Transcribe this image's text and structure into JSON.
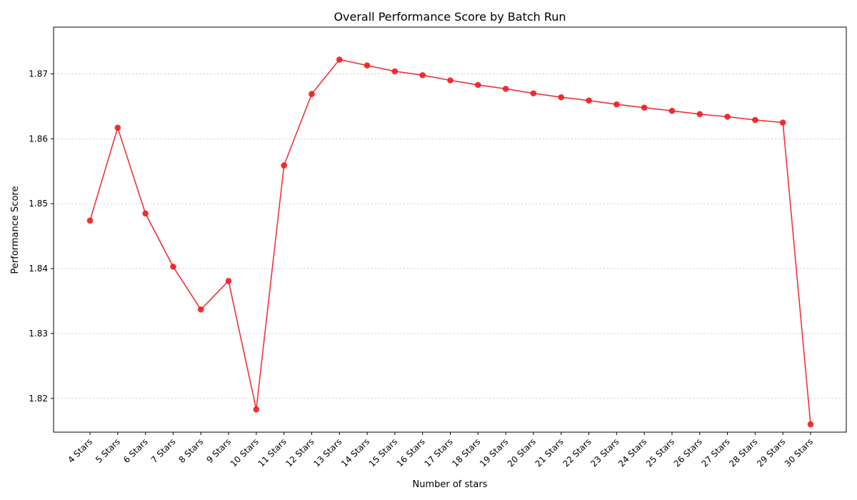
{
  "chart_data": {
    "type": "line",
    "title": "Overall Performance Score by Batch Run",
    "xlabel": "Number of stars",
    "ylabel": "Performance Score",
    "categories": [
      "4 Stars",
      "5 Stars",
      "6 Stars",
      "7 Stars",
      "8 Stars",
      "9 Stars",
      "10 Stars",
      "11 Stars",
      "12 Stars",
      "13 Stars",
      "14 Stars",
      "15 Stars",
      "16 Stars",
      "17 Stars",
      "18 Stars",
      "19 Stars",
      "20 Stars",
      "21 Stars",
      "22 Stars",
      "23 Stars",
      "24 Stars",
      "25 Stars",
      "26 Stars",
      "27 Stars",
      "28 Stars",
      "29 Stars",
      "30 Stars"
    ],
    "series": [
      {
        "color": "#ee1c24",
        "values": [
          1.8474,
          1.8617,
          1.8485,
          1.8403,
          1.8337,
          1.8381,
          1.8183,
          1.8559,
          1.8669,
          1.8722,
          1.8713,
          1.8704,
          1.8698,
          1.869,
          1.8683,
          1.8677,
          1.867,
          1.8664,
          1.8659,
          1.8653,
          1.8648,
          1.8643,
          1.8638,
          1.8634,
          1.8629,
          1.8625,
          1.816
        ]
      }
    ],
    "yticks": [
      "1.82",
      "1.83",
      "1.84",
      "1.85",
      "1.86",
      "1.87"
    ],
    "ylim": [
      1.8148,
      1.8772
    ],
    "grid": "y-dotted",
    "marker": "circle"
  }
}
